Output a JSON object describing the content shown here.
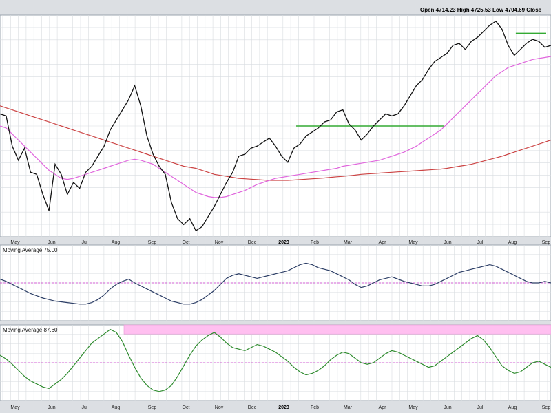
{
  "header": {
    "ohlc_text": "Open 4714.23  High 4725.53  Low 4704.69  Close"
  },
  "colors": {
    "price": "#111111",
    "ma_short": "#e066dd",
    "ma_long": "#cc4444",
    "resistance": "#33aa33",
    "ind1": "#2c3e66",
    "ind2": "#2e8b2e",
    "midline": "#cc33cc",
    "band": "#ffbff0",
    "grid": "#d8dce0"
  },
  "chart_data": [
    {
      "type": "line",
      "panel": "price",
      "x_tick_labels": [
        "May",
        "Jun",
        "Jul",
        "Aug",
        "Sep",
        "Oct",
        "Nov",
        "Dec",
        "2023",
        "Feb",
        "Mar",
        "Apr",
        "May",
        "Jun",
        "Jul",
        "Aug",
        "Sep"
      ],
      "ylim": [
        3550,
        4650
      ],
      "series": [
        {
          "role": "price",
          "values": [
            4160,
            4150,
            4000,
            3930,
            3990,
            3870,
            3860,
            3760,
            3680,
            3910,
            3860,
            3760,
            3820,
            3790,
            3870,
            3900,
            3950,
            4000,
            4080,
            4130,
            4180,
            4230,
            4300,
            4200,
            4050,
            3960,
            3900,
            3860,
            3720,
            3640,
            3610,
            3640,
            3580,
            3600,
            3650,
            3700,
            3760,
            3820,
            3870,
            3950,
            3960,
            3990,
            4000,
            4020,
            4040,
            4000,
            3950,
            3920,
            3990,
            4010,
            4050,
            4070,
            4090,
            4120,
            4130,
            4170,
            4180,
            4110,
            4080,
            4030,
            4060,
            4100,
            4130,
            4160,
            4150,
            4160,
            4200,
            4250,
            4300,
            4330,
            4380,
            4420,
            4440,
            4460,
            4500,
            4510,
            4480,
            4520,
            4540,
            4570,
            4600,
            4620,
            4580,
            4500,
            4450,
            4480,
            4510,
            4530,
            4520,
            4490,
            4500
          ]
        },
        {
          "role": "ma_short",
          "values": [
            4100,
            4090,
            4060,
            4030,
            4000,
            3970,
            3940,
            3910,
            3880,
            3860,
            3840,
            3835,
            3840,
            3850,
            3860,
            3870,
            3880,
            3890,
            3900,
            3910,
            3920,
            3930,
            3935,
            3930,
            3920,
            3910,
            3890,
            3870,
            3850,
            3830,
            3810,
            3790,
            3770,
            3760,
            3750,
            3745,
            3745,
            3750,
            3760,
            3770,
            3780,
            3795,
            3810,
            3820,
            3830,
            3840,
            3845,
            3850,
            3855,
            3860,
            3865,
            3870,
            3875,
            3880,
            3885,
            3890,
            3900,
            3905,
            3910,
            3915,
            3920,
            3925,
            3930,
            3940,
            3950,
            3960,
            3970,
            3985,
            4000,
            4020,
            4040,
            4060,
            4080,
            4110,
            4140,
            4170,
            4200,
            4230,
            4260,
            4290,
            4320,
            4350,
            4370,
            4390,
            4400,
            4410,
            4420,
            4430,
            4435,
            4440,
            4445
          ]
        },
        {
          "role": "ma_long",
          "values": [
            4200,
            4190,
            4180,
            4170,
            4160,
            4150,
            4140,
            4130,
            4120,
            4110,
            4100,
            4090,
            4080,
            4070,
            4060,
            4050,
            4040,
            4030,
            4020,
            4010,
            4000,
            3990,
            3980,
            3970,
            3960,
            3950,
            3940,
            3930,
            3920,
            3910,
            3900,
            3895,
            3890,
            3880,
            3870,
            3860,
            3855,
            3850,
            3845,
            3840,
            3838,
            3836,
            3834,
            3832,
            3830,
            3830,
            3830,
            3830,
            3832,
            3834,
            3836,
            3838,
            3840,
            3842,
            3845,
            3848,
            3850,
            3853,
            3856,
            3860,
            3862,
            3864,
            3866,
            3868,
            3870,
            3872,
            3874,
            3876,
            3878,
            3880,
            3882,
            3884,
            3886,
            3890,
            3895,
            3900,
            3905,
            3910,
            3918,
            3926,
            3934,
            3942,
            3950,
            3960,
            3970,
            3980,
            3990,
            4000,
            4010,
            4020,
            4030
          ]
        }
      ],
      "resistance_lines": [
        {
          "from_tick": 8.4,
          "to_tick": 12.9,
          "y": 4100
        },
        {
          "from_tick": 15.1,
          "to_tick": 16.2,
          "y": 4560
        }
      ]
    },
    {
      "type": "line",
      "panel": "indicator_1",
      "label": "Moving Average 75.00",
      "ylim": [
        0,
        100
      ],
      "midline": 50,
      "values": [
        55,
        52,
        48,
        44,
        40,
        36,
        33,
        30,
        28,
        26,
        25,
        24,
        23,
        22,
        22,
        24,
        28,
        34,
        42,
        48,
        52,
        55,
        50,
        46,
        42,
        38,
        34,
        30,
        26,
        24,
        22,
        22,
        24,
        28,
        34,
        40,
        48,
        56,
        60,
        62,
        60,
        58,
        56,
        58,
        60,
        62,
        64,
        66,
        70,
        74,
        76,
        74,
        70,
        68,
        66,
        62,
        58,
        54,
        48,
        44,
        46,
        50,
        54,
        56,
        58,
        55,
        52,
        50,
        48,
        46,
        46,
        48,
        52,
        56,
        60,
        64,
        66,
        68,
        70,
        72,
        74,
        72,
        68,
        64,
        60,
        56,
        52,
        50,
        50,
        52,
        50
      ]
    },
    {
      "type": "line",
      "panel": "indicator_2",
      "label": "Moving Average 87.60",
      "ylim": [
        0,
        100
      ],
      "midline": 50,
      "band": [
        88,
        100
      ],
      "values": [
        60,
        55,
        48,
        40,
        32,
        26,
        22,
        18,
        16,
        22,
        28,
        36,
        46,
        56,
        66,
        76,
        82,
        88,
        94,
        90,
        78,
        60,
        44,
        30,
        20,
        14,
        12,
        14,
        20,
        32,
        46,
        60,
        72,
        80,
        86,
        90,
        84,
        76,
        70,
        68,
        66,
        70,
        74,
        72,
        68,
        64,
        58,
        52,
        44,
        38,
        34,
        36,
        40,
        46,
        54,
        60,
        64,
        62,
        56,
        50,
        48,
        50,
        56,
        62,
        66,
        64,
        60,
        56,
        52,
        48,
        44,
        46,
        52,
        58,
        64,
        70,
        76,
        82,
        86,
        80,
        70,
        58,
        46,
        40,
        36,
        38,
        44,
        50,
        52,
        48,
        44
      ]
    }
  ]
}
